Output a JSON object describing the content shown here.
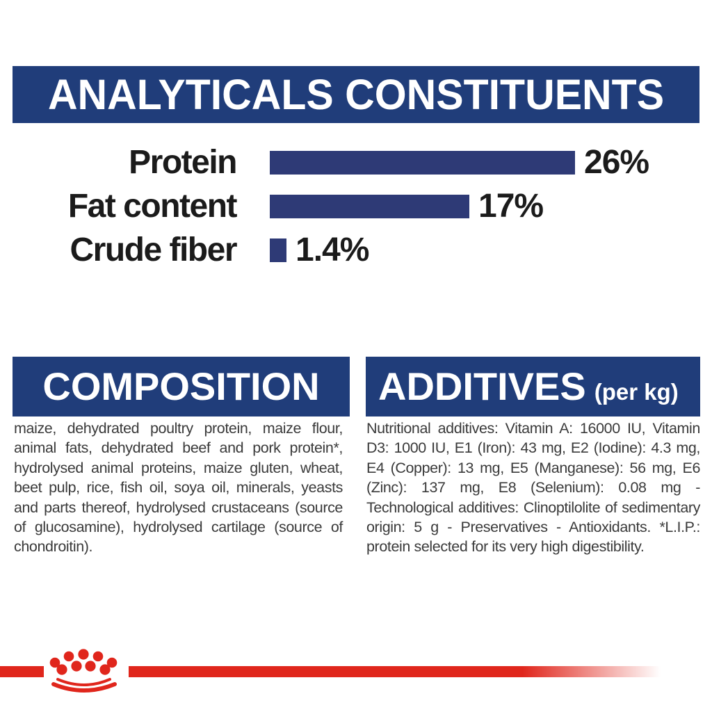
{
  "header": {
    "title": "ANALYTICALS CONSTITUENTS"
  },
  "chart_data": {
    "type": "bar",
    "orientation": "horizontal",
    "title": "ANALYTICALS CONSTITUENTS",
    "categories": [
      "Protein",
      "Fat content",
      "Crude fiber"
    ],
    "values": [
      26,
      17,
      1.4
    ],
    "value_labels": [
      "26%",
      "17%",
      "1.4%"
    ],
    "unit": "%",
    "xlim": [
      0,
      30
    ],
    "grid": false,
    "axis_visible": false,
    "bar_color": "#2e3a76"
  },
  "composition": {
    "title": "COMPOSITION",
    "body": "maize, dehydrated poultry protein, maize flour, animal fats, dehydrated beef and pork protein*, hydrolysed animal proteins, maize gluten, wheat, beet pulp, rice, fish oil, soya oil, minerals, yeasts and parts thereof, hydrolysed crustaceans (source of glucosamine), hydrolysed cartilage (source of chondroitin)."
  },
  "additives": {
    "title": "ADDITIVES",
    "title_suffix": "(per kg)",
    "body": "Nutritional additives: Vitamin A: 16000 IU, Vitamin D3: 1000 IU, E1 (Iron): 43 mg, E2 (Iodine): 4.3 mg, E4 (Copper): 13 mg, E5 (Manganese): 56 mg, E6 (Zinc): 137 mg, E8 (Selenium): 0.08 mg - Technological additives: Clinoptilolite of sedimentary origin: 5 g - Preservatives - Antioxidants. *L.I.P.: protein selected for its very high digestibility."
  },
  "footer": {
    "logo": "royal-canin-crown"
  },
  "colors": {
    "banner_blue": "#203d7a",
    "bar_blue": "#2e3a76",
    "brand_red": "#e0261c",
    "label_black": "#1b1b1b",
    "body_text": "#3a3a3a"
  }
}
